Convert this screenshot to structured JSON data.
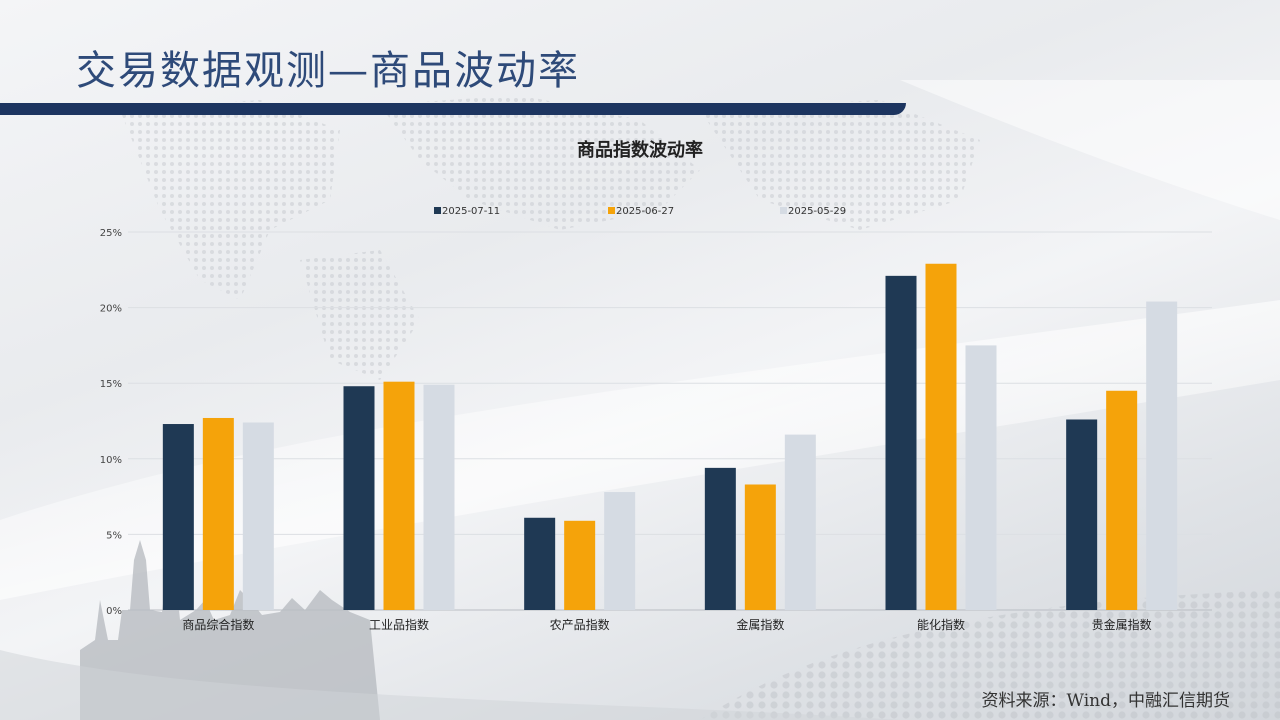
{
  "slide": {
    "title": "交易数据观测—商品波动率",
    "source": "资料来源：Wind，中融汇信期货"
  },
  "colors": {
    "title_text": "#2e4a79",
    "title_rule": "#1d3560"
  },
  "chart_data": {
    "type": "bar",
    "title": "商品指数波动率",
    "categories": [
      "商品综合指数",
      "工业品指数",
      "农产品指数",
      "金属指数",
      "能化指数",
      "贵金属指数"
    ],
    "series": [
      {
        "name": "2025-07-11",
        "color": "#1f3954",
        "values": [
          12.3,
          14.8,
          6.1,
          9.4,
          22.1,
          12.6
        ]
      },
      {
        "name": "2025-06-27",
        "color": "#f5a30a",
        "values": [
          12.7,
          15.1,
          5.9,
          8.3,
          22.9,
          14.5
        ]
      },
      {
        "name": "2025-05-29",
        "color": "#d5dbe3",
        "values": [
          12.4,
          14.9,
          7.8,
          11.6,
          17.5,
          20.4
        ]
      }
    ],
    "yticks": [
      "0%",
      "5%",
      "10%",
      "15%",
      "20%",
      "25%"
    ],
    "ylim": [
      0,
      25
    ],
    "xlabel": "",
    "ylabel": "",
    "grid": true,
    "legend_position": "top"
  }
}
